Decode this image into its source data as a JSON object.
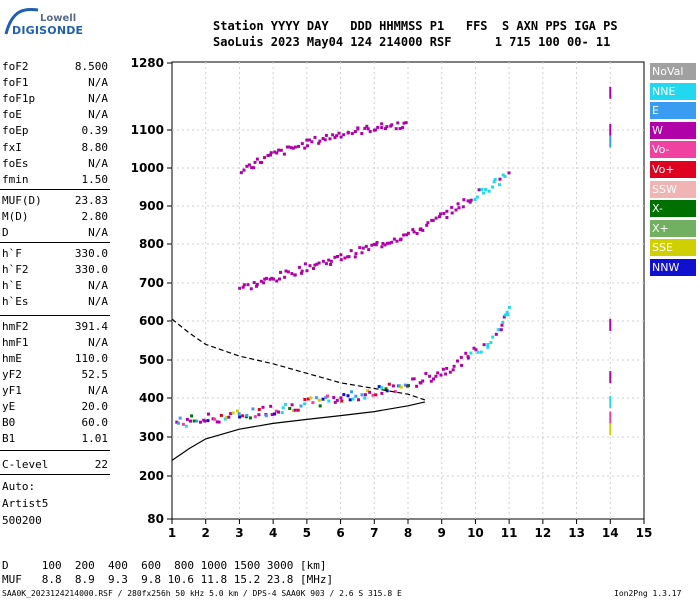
{
  "logo": {
    "line1": "Lowell",
    "line2": "DIGISONDE"
  },
  "header": {
    "line1": "Station YYYY DAY   DDD HHMMSS P1   FFS  S AXN PPS IGA PS",
    "line2": "SaoLuis 2023 May04 124 214000 RSF      1 715 100 00- 11"
  },
  "params": [
    {
      "k": "foF2",
      "v": "8.500"
    },
    {
      "k": "foF1",
      "v": "N/A"
    },
    {
      "k": "foF1p",
      "v": "N/A"
    },
    {
      "k": "foE",
      "v": "N/A"
    },
    {
      "k": "foEp",
      "v": "0.39"
    },
    {
      "k": "fxI",
      "v": "8.80"
    },
    {
      "k": "foEs",
      "v": "N/A"
    },
    {
      "k": "fmin",
      "v": "1.50"
    },
    {
      "k": "MUF(D)",
      "v": "23.83"
    },
    {
      "k": "M(D)",
      "v": "2.80"
    },
    {
      "k": "D",
      "v": "N/A"
    },
    {
      "k": "h`F",
      "v": "330.0"
    },
    {
      "k": "h`F2",
      "v": "330.0"
    },
    {
      "k": "h`E",
      "v": "N/A"
    },
    {
      "k": "h`Es",
      "v": "N/A"
    },
    {
      "k": "hmF2",
      "v": "391.4"
    },
    {
      "k": "hmF1",
      "v": "N/A"
    },
    {
      "k": "hmE",
      "v": "110.0"
    },
    {
      "k": "yF2",
      "v": "52.5"
    },
    {
      "k": "yF1",
      "v": "N/A"
    },
    {
      "k": "yE",
      "v": "20.0"
    },
    {
      "k": "B0",
      "v": "60.0"
    },
    {
      "k": "B1",
      "v": "1.01"
    },
    {
      "k": "C-level",
      "v": "22"
    }
  ],
  "auto": {
    "line1": "Auto:",
    "line2": "Artist5",
    "line3": "500200"
  },
  "legend": [
    {
      "label": "NoVal",
      "color": "#a0a0a0"
    },
    {
      "label": "NNE",
      "color": "#22d8f0"
    },
    {
      "label": "E",
      "color": "#3a9cf0"
    },
    {
      "label": "W",
      "color": "#b000a8"
    },
    {
      "label": "Vo-",
      "color": "#f040a0"
    },
    {
      "label": "Vo+",
      "color": "#e00020"
    },
    {
      "label": "SSW",
      "color": "#f0b4b4"
    },
    {
      "label": "X-",
      "color": "#007000"
    },
    {
      "label": "X+",
      "color": "#70b060"
    },
    {
      "label": "SSE",
      "color": "#d0d000"
    },
    {
      "label": "NNW",
      "color": "#1010d0"
    }
  ],
  "bottom": {
    "row1": "D     100  200  400  600  800 1000 1500 3000 [km]",
    "row2": "MUF   8.8  8.9  9.3  9.8 10.6 11.8 15.2 23.8 [MHz]"
  },
  "footer": {
    "left": "SAA0K_2023124214000.RSF / 280fx256h 50 kHz 5.0 km / DPS-4 SAA0K 903 / 2.6 S 315.8 E",
    "right": "Ion2Png 1.3.17"
  },
  "chart_data": {
    "type": "scatter",
    "xlabel": "",
    "ylabel": "",
    "xlim": [
      1,
      15
    ],
    "ylim": [
      80,
      1280
    ],
    "x_ticks": [
      1,
      2,
      3,
      4,
      5,
      6,
      7,
      8,
      9,
      10,
      11,
      12,
      13,
      14,
      15
    ],
    "y_ticks": [
      80,
      200,
      300,
      400,
      500,
      600,
      700,
      800,
      900,
      1000,
      1100,
      1280
    ],
    "grid": true,
    "traces": [
      {
        "name": "O-trace 1st hop",
        "color": "#b000a8",
        "points": [
          [
            1.1,
            340
          ],
          [
            1.5,
            345
          ],
          [
            2,
            350
          ],
          [
            3,
            360
          ],
          [
            4,
            375
          ],
          [
            5,
            390
          ],
          [
            6,
            405
          ],
          [
            7,
            420
          ],
          [
            8,
            440
          ],
          [
            8.5,
            455
          ],
          [
            9,
            475
          ],
          [
            9.5,
            500
          ],
          [
            10,
            525
          ],
          [
            10.5,
            565
          ],
          [
            10.8,
            600
          ],
          [
            11,
            640
          ]
        ]
      },
      {
        "name": "2nd hop",
        "color": "#b000a8",
        "points": [
          [
            3,
            690
          ],
          [
            4,
            715
          ],
          [
            5,
            745
          ],
          [
            6,
            770
          ],
          [
            7,
            800
          ],
          [
            8,
            830
          ],
          [
            8.5,
            850
          ],
          [
            9,
            880
          ],
          [
            9.5,
            905
          ],
          [
            10,
            935
          ],
          [
            10.5,
            960
          ],
          [
            11,
            990
          ]
        ]
      },
      {
        "name": "3rd hop",
        "color": "#b000a8",
        "points": [
          [
            3,
            1000
          ],
          [
            3.5,
            1020
          ],
          [
            4,
            1040
          ],
          [
            4.5,
            1055
          ],
          [
            5,
            1070
          ],
          [
            6,
            1095
          ],
          [
            7,
            1110
          ],
          [
            8,
            1120
          ]
        ]
      },
      {
        "name": "Ne profile (solid)",
        "color": "#000000",
        "points": [
          [
            1,
            240
          ],
          [
            1.5,
            270
          ],
          [
            2,
            295
          ],
          [
            3,
            320
          ],
          [
            4,
            335
          ],
          [
            5,
            345
          ],
          [
            6,
            355
          ],
          [
            7,
            365
          ],
          [
            8,
            380
          ],
          [
            8.5,
            390
          ]
        ]
      },
      {
        "name": "Model profile (dashed)",
        "color": "#000000",
        "points": [
          [
            1,
            605
          ],
          [
            1.5,
            570
          ],
          [
            2,
            540
          ],
          [
            3,
            510
          ],
          [
            4,
            490
          ],
          [
            5,
            465
          ],
          [
            6,
            440
          ],
          [
            7,
            425
          ],
          [
            8,
            410
          ],
          [
            8.5,
            395
          ]
        ]
      }
    ]
  }
}
